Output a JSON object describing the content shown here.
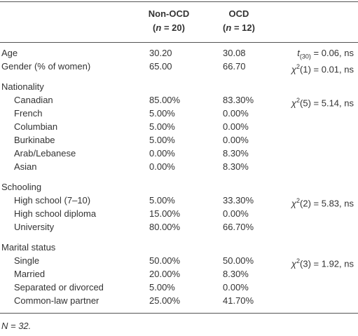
{
  "header": {
    "columns": [
      {
        "name": "Non-OCD",
        "n": {
          "open": "(",
          "var": "n",
          "rest": " = 20)"
        }
      },
      {
        "name": "OCD",
        "n": {
          "open": "(",
          "var": "n",
          "rest": " = 12)"
        }
      }
    ]
  },
  "rows": [
    {
      "label": "Age",
      "non_ocd": "30.20",
      "ocd": "30.08",
      "stat": {
        "symbol": "t",
        "script": "(30)",
        "rest": " = 0.06, ns"
      }
    },
    {
      "label": "Gender (% of women)",
      "non_ocd": "65.00",
      "ocd": "66.70",
      "stat": {
        "symbol": "χ",
        "script": "2",
        "rest": "(1) = 0.01, ns"
      }
    }
  ],
  "sections": [
    {
      "title": "Nationality",
      "stat": {
        "symbol": "χ",
        "script": "2",
        "rest": "(5) = 5.14, ns"
      },
      "rows": [
        {
          "label": "Canadian",
          "non_ocd": "85.00%",
          "ocd": "83.30%"
        },
        {
          "label": "French",
          "non_ocd": "5.00%",
          "ocd": "0.00%"
        },
        {
          "label": "Columbian",
          "non_ocd": "5.00%",
          "ocd": "0.00%"
        },
        {
          "label": "Burkinabe",
          "non_ocd": "5.00%",
          "ocd": "0.00%"
        },
        {
          "label": "Arab/Lebanese",
          "non_ocd": "0.00%",
          "ocd": "8.30%"
        },
        {
          "label": "Asian",
          "non_ocd": "0.00%",
          "ocd": "8.30%"
        }
      ]
    },
    {
      "title": "Schooling",
      "stat": {
        "symbol": "χ",
        "script": "2",
        "rest": "(2) = 5.83, ns"
      },
      "rows": [
        {
          "label": "High school (7–10)",
          "non_ocd": "5.00%",
          "ocd": "33.30%"
        },
        {
          "label": "High school diploma",
          "non_ocd": "15.00%",
          "ocd": "0.00%"
        },
        {
          "label": "University",
          "non_ocd": "80.00%",
          "ocd": "66.70%"
        }
      ]
    },
    {
      "title": "Marital status",
      "stat": {
        "symbol": "χ",
        "script": "2",
        "rest": "(3) = 1.92, ns"
      },
      "rows": [
        {
          "label": "Single",
          "non_ocd": "50.00%",
          "ocd": "50.00%"
        },
        {
          "label": "Married",
          "non_ocd": "20.00%",
          "ocd": "8.30%"
        },
        {
          "label": "Separated or divorced",
          "non_ocd": "5.00%",
          "ocd": "0.00%"
        },
        {
          "label": "Common-law partner",
          "non_ocd": "25.00%",
          "ocd": "41.70%"
        }
      ]
    }
  ],
  "note": {
    "var": "N",
    "rest": " = 32."
  }
}
